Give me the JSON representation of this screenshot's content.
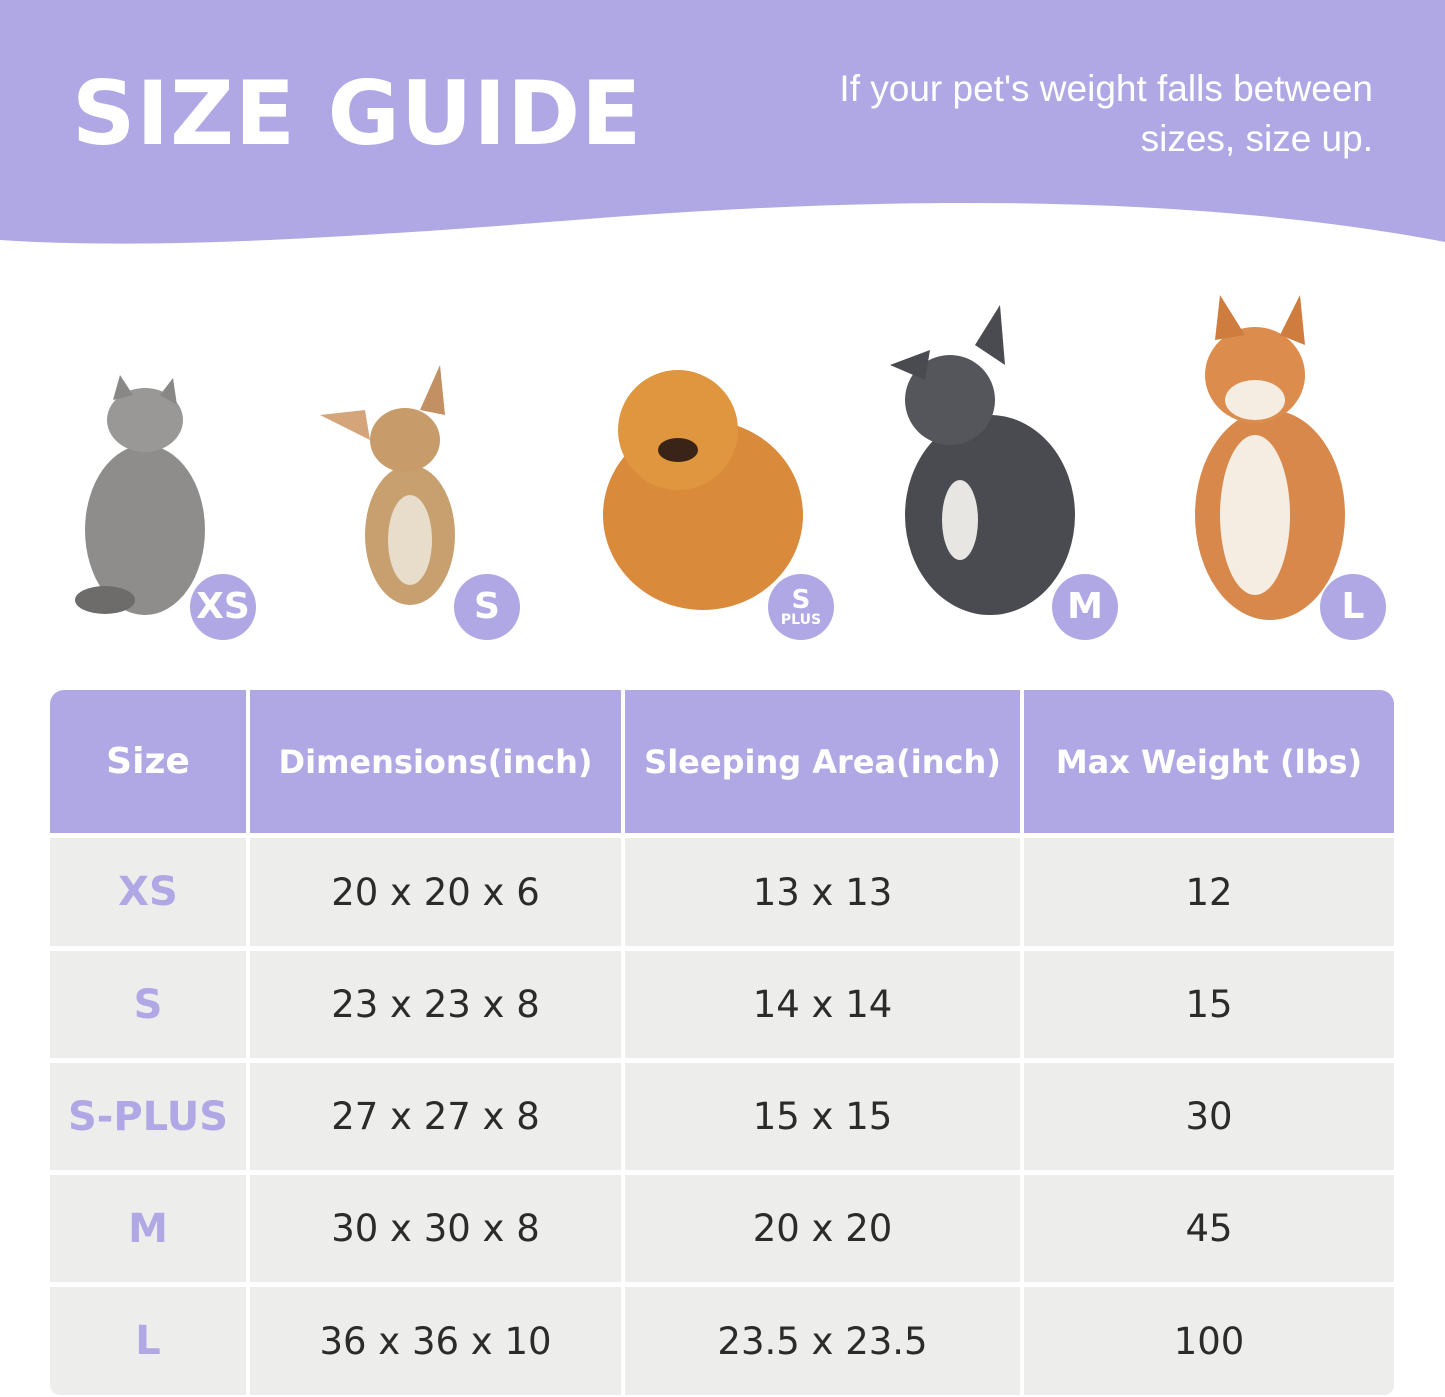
{
  "header": {
    "title": "SIZE GUIDE",
    "tagline": "If your pet's weight falls between sizes, size up."
  },
  "colors": {
    "accent": "#b0a8e4",
    "cell_bg": "#ededec",
    "text": "#2b2b2b"
  },
  "pets": [
    {
      "animal": "cat",
      "badge": "XS",
      "badge_sub": ""
    },
    {
      "animal": "chihuahua",
      "badge": "S",
      "badge_sub": ""
    },
    {
      "animal": "pomeranian",
      "badge": "S",
      "badge_sub": "PLUS"
    },
    {
      "animal": "french-bulldog",
      "badge": "M",
      "badge_sub": ""
    },
    {
      "animal": "shiba-inu",
      "badge": "L",
      "badge_sub": ""
    }
  ],
  "table": {
    "headers": [
      "Size",
      "Dimensions(inch)",
      "Sleeping Area(inch)",
      "Max Weight (lbs)"
    ],
    "rows": [
      [
        "XS",
        "20 x 20 x 6",
        "13 x 13",
        "12"
      ],
      [
        "S",
        "23 x 23 x 8",
        "14 x 14",
        "15"
      ],
      [
        "S-PLUS",
        "27 x 27 x 8",
        "15 x 15",
        "30"
      ],
      [
        "M",
        "30 x 30 x 8",
        "20 x 20",
        "45"
      ],
      [
        "L",
        "36 x 36 x 10",
        "23.5 x 23.5",
        "100"
      ]
    ]
  }
}
